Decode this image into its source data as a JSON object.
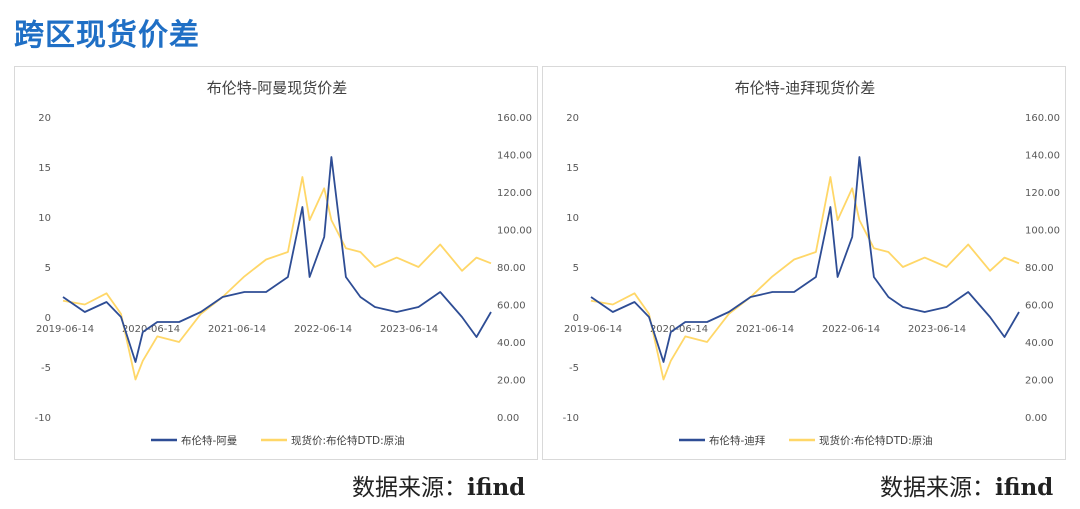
{
  "page_title": "跨区现货价差",
  "source_label": "数据来源：",
  "source_name": "ifind",
  "colors": {
    "spread": "#2e4d95",
    "price": "#ffd768",
    "title": "#1f6fc5"
  },
  "chart_data": [
    {
      "type": "line",
      "title": "布伦特-阿曼现货价差",
      "x_ticks": [
        "2019-06-14",
        "2020-06-14",
        "2021-06-14",
        "2022-06-14",
        "2023-06-14"
      ],
      "y_left": {
        "range": [
          -10,
          20
        ],
        "ticks": [
          "20",
          "15",
          "10",
          "5",
          "0",
          "-5",
          "-10"
        ]
      },
      "y_right": {
        "range": [
          0,
          160
        ],
        "ticks": [
          "160.00",
          "140.00",
          "120.00",
          "100.00",
          "80.00",
          "60.00",
          "40.00",
          "20.00",
          "0.00"
        ]
      },
      "series": [
        {
          "name": "布伦特-阿曼",
          "axis": "left",
          "x": [
            "2019-06",
            "2019-09",
            "2019-12",
            "2020-02",
            "2020-04",
            "2020-05",
            "2020-07",
            "2020-10",
            "2021-01",
            "2021-04",
            "2021-07",
            "2021-10",
            "2022-01",
            "2022-03",
            "2022-04",
            "2022-06",
            "2022-07",
            "2022-09",
            "2022-11",
            "2023-01",
            "2023-04",
            "2023-07",
            "2023-10",
            "2024-01",
            "2024-03",
            "2024-05"
          ],
          "values": [
            2.0,
            0.5,
            1.5,
            0.0,
            -4.5,
            -1.5,
            -0.5,
            -0.5,
            0.5,
            2.0,
            2.5,
            2.5,
            4.0,
            11.0,
            4.0,
            8.0,
            16.0,
            4.0,
            2.0,
            1.0,
            0.5,
            1.0,
            2.5,
            0.0,
            -2.0,
            0.5
          ]
        },
        {
          "name": "现货价:布伦特DTD:原油",
          "axis": "right",
          "x": [
            "2019-06",
            "2019-09",
            "2019-12",
            "2020-02",
            "2020-04",
            "2020-05",
            "2020-07",
            "2020-10",
            "2021-01",
            "2021-04",
            "2021-07",
            "2021-10",
            "2022-01",
            "2022-03",
            "2022-04",
            "2022-06",
            "2022-07",
            "2022-09",
            "2022-11",
            "2023-01",
            "2023-04",
            "2023-07",
            "2023-10",
            "2024-01",
            "2024-03",
            "2024-05"
          ],
          "values": [
            62,
            60,
            66,
            55,
            20,
            30,
            43,
            40,
            55,
            64,
            75,
            84,
            88,
            128,
            105,
            122,
            105,
            90,
            88,
            80,
            85,
            80,
            92,
            78,
            85,
            82
          ]
        }
      ],
      "legend": "bottom"
    },
    {
      "type": "line",
      "title": "布伦特-迪拜现货价差",
      "x_ticks": [
        "2019-06-14",
        "2020-06-14",
        "2021-06-14",
        "2022-06-14",
        "2023-06-14"
      ],
      "y_left": {
        "range": [
          -10,
          20
        ],
        "ticks": [
          "20",
          "15",
          "10",
          "5",
          "0",
          "-5",
          "-10"
        ]
      },
      "y_right": {
        "range": [
          0,
          160
        ],
        "ticks": [
          "160.00",
          "140.00",
          "120.00",
          "100.00",
          "80.00",
          "60.00",
          "40.00",
          "20.00",
          "0.00"
        ]
      },
      "series": [
        {
          "name": "布伦特-迪拜",
          "axis": "left",
          "x": [
            "2019-06",
            "2019-09",
            "2019-12",
            "2020-02",
            "2020-04",
            "2020-05",
            "2020-07",
            "2020-10",
            "2021-01",
            "2021-04",
            "2021-07",
            "2021-10",
            "2022-01",
            "2022-03",
            "2022-04",
            "2022-06",
            "2022-07",
            "2022-09",
            "2022-11",
            "2023-01",
            "2023-04",
            "2023-07",
            "2023-10",
            "2024-01",
            "2024-03",
            "2024-05"
          ],
          "values": [
            2.0,
            0.5,
            1.5,
            0.0,
            -4.5,
            -1.5,
            -0.5,
            -0.5,
            0.5,
            2.0,
            2.5,
            2.5,
            4.0,
            11.0,
            4.0,
            8.0,
            16.0,
            4.0,
            2.0,
            1.0,
            0.5,
            1.0,
            2.5,
            0.0,
            -2.0,
            0.5
          ]
        },
        {
          "name": "现货价:布伦特DTD:原油",
          "axis": "right",
          "x": [
            "2019-06",
            "2019-09",
            "2019-12",
            "2020-02",
            "2020-04",
            "2020-05",
            "2020-07",
            "2020-10",
            "2021-01",
            "2021-04",
            "2021-07",
            "2021-10",
            "2022-01",
            "2022-03",
            "2022-04",
            "2022-06",
            "2022-07",
            "2022-09",
            "2022-11",
            "2023-01",
            "2023-04",
            "2023-07",
            "2023-10",
            "2024-01",
            "2024-03",
            "2024-05"
          ],
          "values": [
            62,
            60,
            66,
            55,
            20,
            30,
            43,
            40,
            55,
            64,
            75,
            84,
            88,
            128,
            105,
            122,
            105,
            90,
            88,
            80,
            85,
            80,
            92,
            78,
            85,
            82
          ]
        }
      ],
      "legend": "bottom"
    }
  ]
}
